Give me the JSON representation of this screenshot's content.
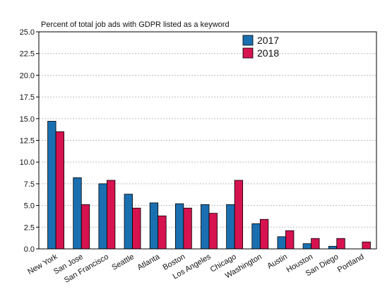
{
  "chart_data": {
    "type": "bar",
    "title": "Percent of total job ads with GDPR listed as a keyword",
    "xlabel": "",
    "ylabel": "",
    "ylim": [
      0,
      25
    ],
    "yticks": [
      0.0,
      2.5,
      5.0,
      7.5,
      10.0,
      12.5,
      15.0,
      17.5,
      20.0,
      22.5,
      25.0
    ],
    "ytick_labels": [
      "0.0",
      "2.5",
      "5.0",
      "7.5",
      "10.0",
      "12.5",
      "15.0",
      "17.5",
      "20.0",
      "22.5",
      "25.0"
    ],
    "grid": true,
    "legend_position": "top-right",
    "categories": [
      "New York",
      "San Jose",
      "San Francisco",
      "Seattle",
      "Atlanta",
      "Boston",
      "Los Angeles",
      "Chicago",
      "Washington",
      "Austin",
      "Houston",
      "San Diego",
      "Portland"
    ],
    "series": [
      {
        "name": "2017",
        "color": "#1a6fb0",
        "values": [
          14.7,
          8.2,
          7.5,
          6.3,
          5.3,
          5.2,
          5.1,
          5.1,
          2.9,
          1.4,
          0.6,
          0.3,
          0.0
        ]
      },
      {
        "name": "2018",
        "color": "#d6124f",
        "values": [
          13.5,
          5.1,
          7.9,
          4.7,
          3.8,
          4.7,
          4.1,
          7.9,
          3.4,
          2.1,
          1.2,
          1.2,
          0.8
        ]
      }
    ]
  }
}
